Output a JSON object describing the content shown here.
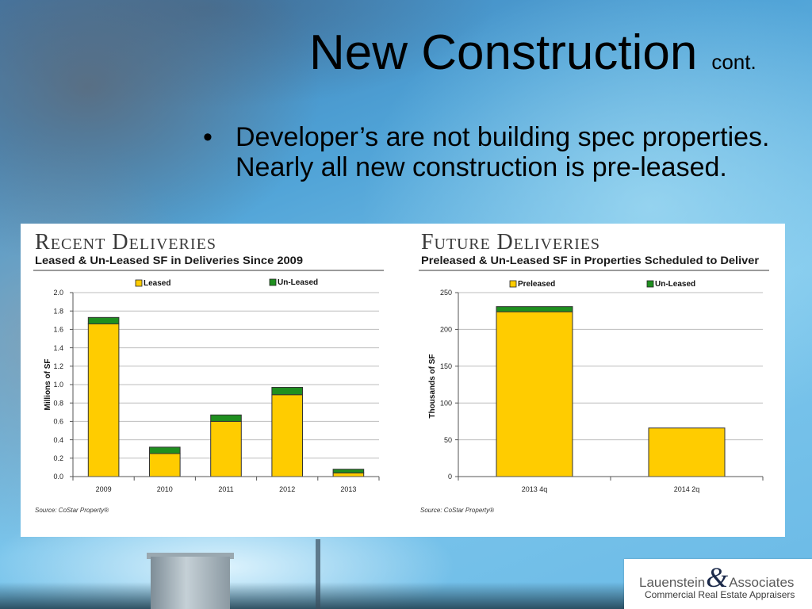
{
  "slide": {
    "title": "New Construction",
    "title_suffix": "cont.",
    "bullet_symbol": "•",
    "bullet_text": "Developer’s are not building spec properties. Nearly all new construction is pre-leased."
  },
  "chart_data": [
    {
      "type": "bar",
      "stacked": true,
      "title": "Recent Deliveries",
      "subtitle": "Leased & Un-Leased SF in Deliveries Since 2009",
      "categories": [
        "2009",
        "2010",
        "2011",
        "2012",
        "2013"
      ],
      "series": [
        {
          "name": "Leased",
          "color": "#FFCC00",
          "values": [
            1.66,
            0.25,
            0.6,
            0.89,
            0.04
          ]
        },
        {
          "name": "Un-Leased",
          "color": "#1F8F1F",
          "values": [
            0.07,
            0.07,
            0.07,
            0.08,
            0.04
          ]
        }
      ],
      "ylabel": "Millions of SF",
      "ylim": [
        0,
        2.0
      ],
      "yticks": [
        "0.0",
        "0.2",
        "0.4",
        "0.6",
        "0.8",
        "1.0",
        "1.2",
        "1.4",
        "1.6",
        "1.8",
        "2.0"
      ],
      "grid": true,
      "legend_position": "top",
      "source": "Source: CoStar Property®"
    },
    {
      "type": "bar",
      "stacked": true,
      "title": "Future Deliveries",
      "subtitle": "Preleased & Un-Leased SF in Properties Scheduled to Deliver",
      "categories": [
        "2013 4q",
        "2014 2q"
      ],
      "series": [
        {
          "name": "Preleased",
          "color": "#FFCC00",
          "values": [
            224,
            66
          ]
        },
        {
          "name": "Un-Leased",
          "color": "#1F8F1F",
          "values": [
            7,
            0
          ]
        }
      ],
      "ylabel": "Thousands of SF",
      "ylim": [
        0,
        250
      ],
      "yticks": [
        "0",
        "50",
        "100",
        "150",
        "200",
        "250"
      ],
      "grid": true,
      "legend_position": "top",
      "source": "Source: CoStar Property®"
    }
  ],
  "logo": {
    "name_left": "Lauenstein",
    "ampersand": "&",
    "name_right": "Associates",
    "tagline": "Commercial Real Estate Appraisers"
  },
  "colors": {
    "title_text": "#000000",
    "chart_panel": "#FFFFFF",
    "chart_title": "#3A3A3A",
    "logo_ampersand": "#1C2A4A",
    "logo_text": "#5A5A5A"
  }
}
